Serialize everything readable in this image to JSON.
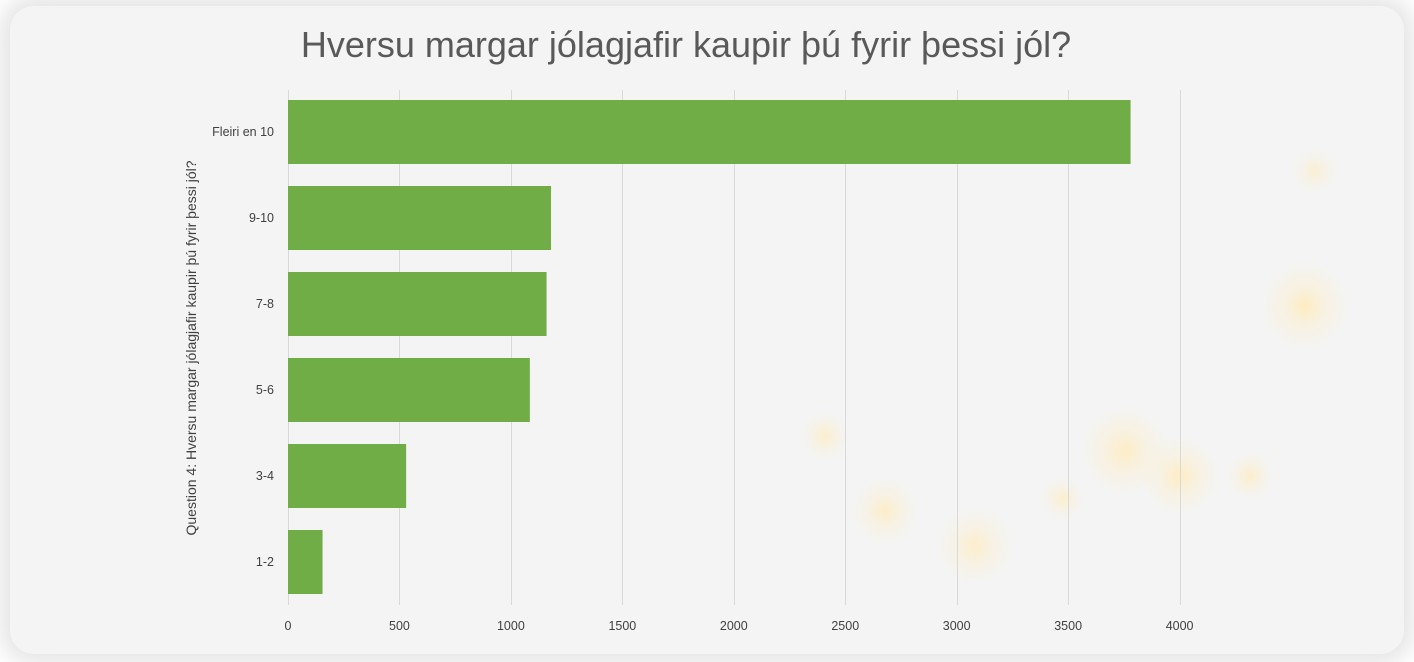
{
  "chart_data": {
    "type": "bar",
    "orientation": "horizontal",
    "title": "Hversu margar jólagjafir kaupir þú fyrir þessi jól?",
    "ylabel": "Question 4: Hversu margar jólagjafir kaupir þú fyrir þessi jól?",
    "xlabel": "",
    "categories": [
      "Fleiri en 10",
      "9-10",
      "7-8",
      "5-6",
      "3-4",
      "1-2"
    ],
    "values": [
      3780,
      1180,
      1160,
      1085,
      530,
      155
    ],
    "xlim": [
      0,
      4500
    ],
    "xticks": [
      0,
      500,
      1000,
      1500,
      2000,
      2500,
      3000,
      3500,
      4000
    ],
    "grid": "vertical",
    "legend": "none",
    "colors": {
      "bar": "#70ad47",
      "background": "#f4f4f4",
      "gridline": "#d9d9d9",
      "text": "#404040",
      "title": "#595959"
    }
  }
}
